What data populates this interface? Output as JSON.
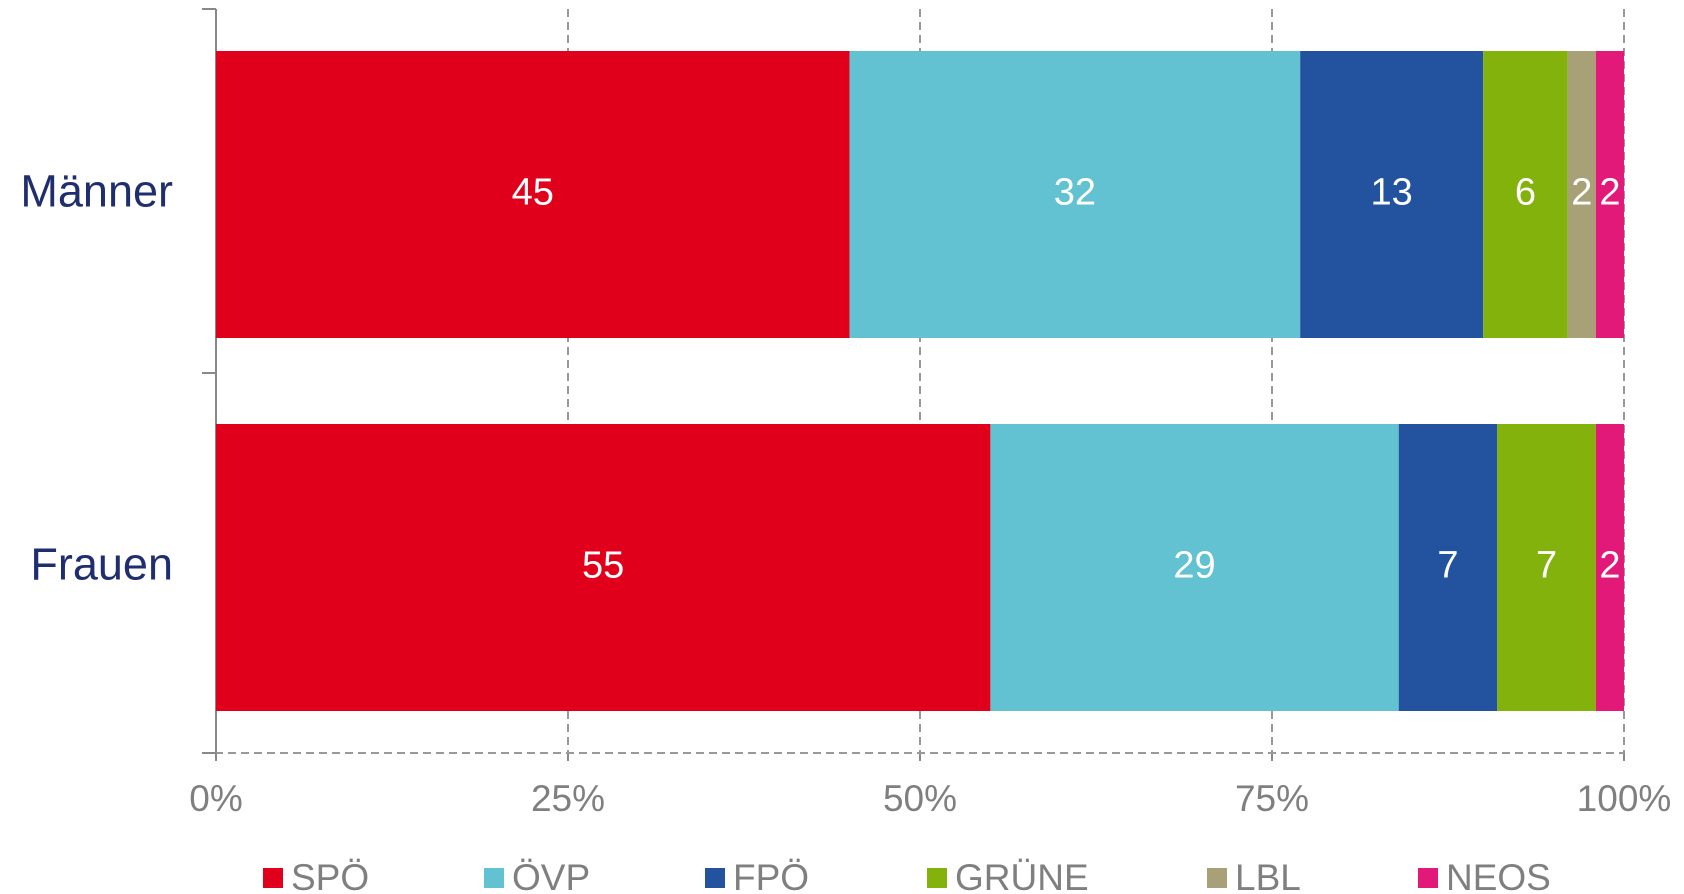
{
  "chart_data": {
    "type": "stacked-barh",
    "categories": [
      "Männer",
      "Frauen"
    ],
    "series": [
      {
        "name": "SPÖ",
        "color": "#e1001c",
        "values": [
          45,
          55
        ]
      },
      {
        "name": "ÖVP",
        "color": "#63c2d1",
        "values": [
          32,
          29
        ]
      },
      {
        "name": "FPÖ",
        "color": "#23539e",
        "values": [
          13,
          7
        ]
      },
      {
        "name": "GRÜNE",
        "color": "#82b20b",
        "values": [
          6,
          7
        ]
      },
      {
        "name": "LBL",
        "color": "#a8a177",
        "values": [
          2,
          null
        ]
      },
      {
        "name": "NEOS",
        "color": "#e3197a",
        "values": [
          2,
          2
        ]
      }
    ],
    "xlim": [
      0,
      100
    ],
    "xticks": [
      {
        "value": 0,
        "label": "0%"
      },
      {
        "value": 25,
        "label": "25%"
      },
      {
        "value": 50,
        "label": "50%"
      },
      {
        "value": 75,
        "label": "75%"
      },
      {
        "value": 100,
        "label": "100%"
      }
    ],
    "grid": true,
    "legend": "bottom"
  }
}
